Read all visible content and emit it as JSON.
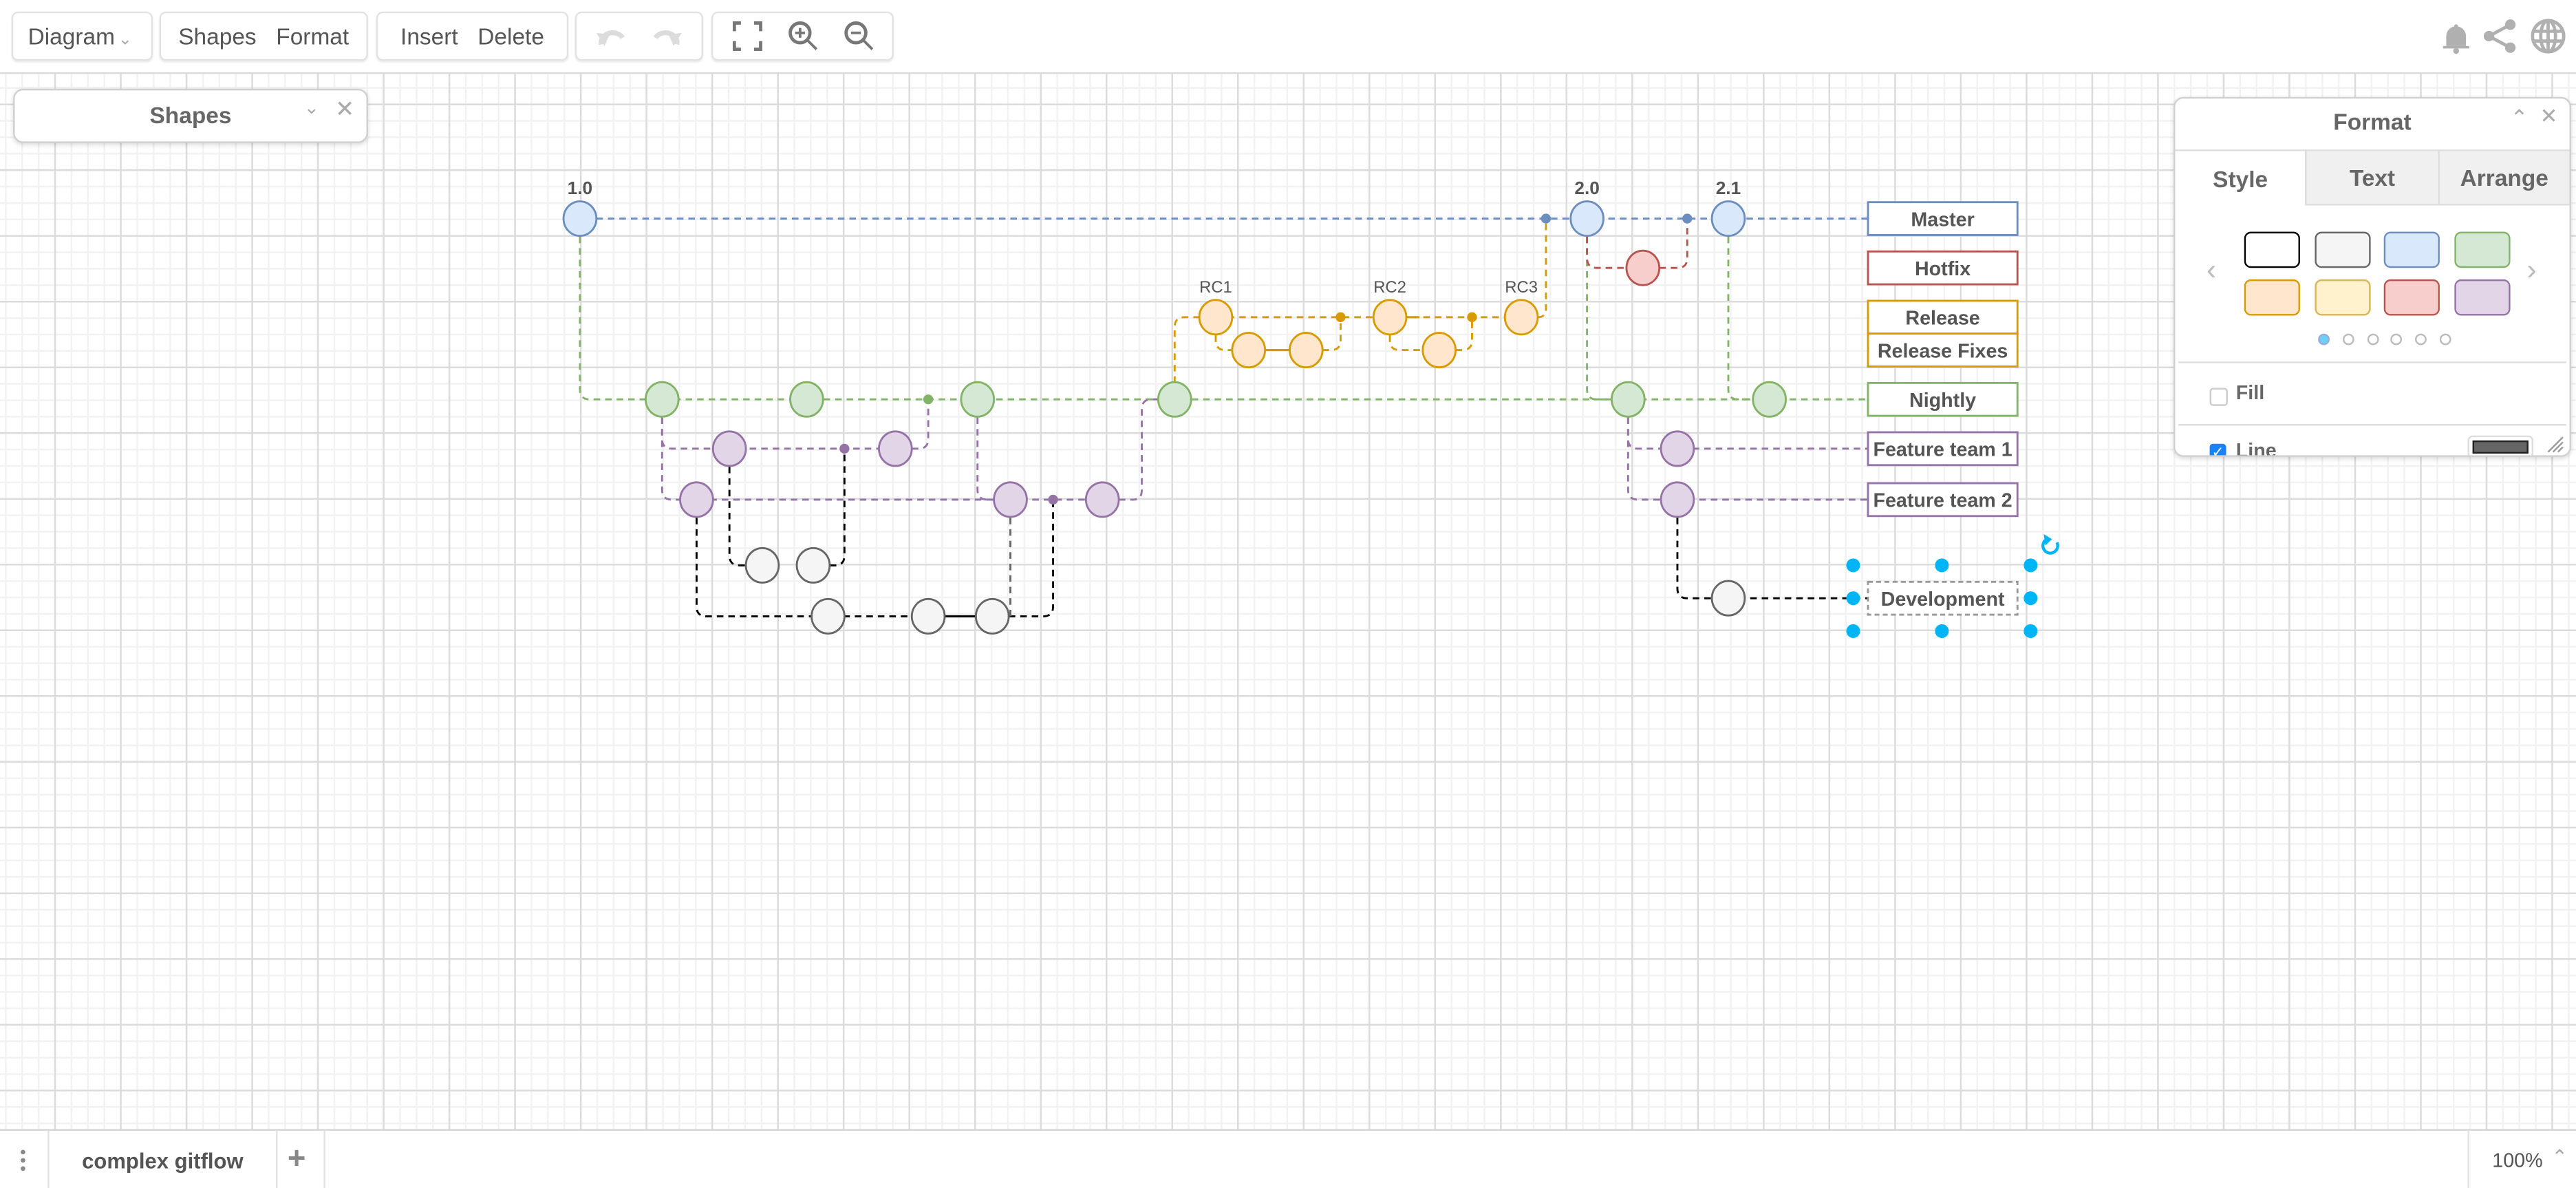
{
  "toolbar": {
    "diagram": "Diagram",
    "shapes": "Shapes",
    "format": "Format",
    "insert": "Insert",
    "delete": "Delete",
    "icons": [
      "undo-icon",
      "redo-icon",
      "fullscreen-icon",
      "zoom-in-icon",
      "zoom-out-icon",
      "bell-icon",
      "share-icon",
      "globe-icon"
    ]
  },
  "shapes_panel": {
    "title": "Shapes"
  },
  "format_panel": {
    "title": "Format",
    "tabs": [
      "Style",
      "Text",
      "Arrange"
    ],
    "active_tab": "Style",
    "swatches": [
      {
        "fill": "#ffffff",
        "stroke": "#000000"
      },
      {
        "fill": "#f5f5f5",
        "stroke": "#666666"
      },
      {
        "fill": "#dae8fc",
        "stroke": "#6c8ebf"
      },
      {
        "fill": "#d5e8d4",
        "stroke": "#82b366"
      },
      {
        "fill": "#ffe6cc",
        "stroke": "#d79b00"
      },
      {
        "fill": "#fff2cc",
        "stroke": "#d6b656"
      },
      {
        "fill": "#f8cecc",
        "stroke": "#b85450"
      },
      {
        "fill": "#e1d5e7",
        "stroke": "#9673a6"
      }
    ],
    "page_dots": 6,
    "active_page": 1,
    "fill_label": "Fill",
    "fill_checked": false,
    "line_label": "Line",
    "line_checked": true
  },
  "diagram": {
    "versions": [
      "1.0",
      "2.0",
      "2.1"
    ],
    "release_candidates": [
      "RC1",
      "RC2",
      "RC3"
    ],
    "branches": [
      {
        "label": "Master",
        "color": "#6c8ebf"
      },
      {
        "label": "Hotfix",
        "color": "#b85450"
      },
      {
        "label": "Release",
        "color": "#d79b00"
      },
      {
        "label": "Release Fixes",
        "color": "#d79b00"
      },
      {
        "label": "Nightly",
        "color": "#82b366"
      },
      {
        "label": "Feature team 1",
        "color": "#9673a6"
      },
      {
        "label": "Feature team 2",
        "color": "#9673a6"
      },
      {
        "label": "Development",
        "color": "#666666"
      }
    ],
    "selected": "Development"
  },
  "bottom": {
    "page_tab": "complex gitflow",
    "zoom": "100%"
  }
}
